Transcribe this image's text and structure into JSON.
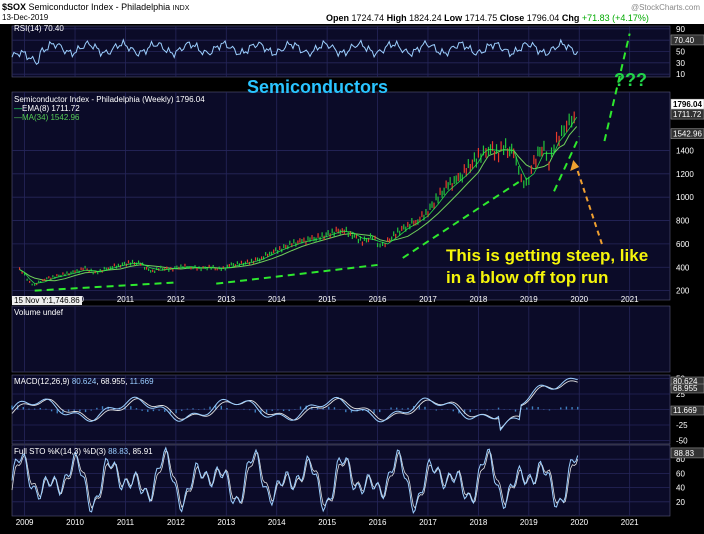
{
  "header": {
    "symbol": "$SOX",
    "name": "Semiconductor Index - Philadelphia",
    "exchange": "INDX",
    "date": "13-Dec-2019",
    "watermark": "@StockCharts.com",
    "ohlc": {
      "open_label": "Open",
      "open": "1724.74",
      "high_label": "High",
      "high": "1824.24",
      "low_label": "Low",
      "low": "1714.75",
      "close_label": "Close",
      "close": "1796.04",
      "chg_label": "Chg",
      "chg": "+71.83 (+4.17%)"
    }
  },
  "panels": {
    "rsi": {
      "label": "RSI(14)",
      "value": "70.40"
    },
    "price": {
      "series_label": "Semiconductor Index - Philadelphia (Weekly)",
      "series_value": "1796.04",
      "ema_label": "EMA(8)",
      "ema_value": "1711.72",
      "ma_label": "MA(34)",
      "ma_value": "1542.96"
    },
    "volume": {
      "label": "Volume undef"
    },
    "macd": {
      "label": "MACD(12,26,9)",
      "value1": "80.624",
      "value2": "68.955",
      "value3": "11.669"
    },
    "sto": {
      "label": "Full STO %K(14,3) %D(3)",
      "value1": "88.83",
      "value2": "85.91"
    }
  },
  "tooltip": "15 Nov Y:1,746.86",
  "annotations": {
    "sector": "Semiconductors",
    "question": "???",
    "steep_line1": "This is getting steep, like",
    "steep_line2": "in a blow off top run"
  },
  "colors": {
    "background": "#000000",
    "panel": "#0b0b28",
    "grid": "#26265a",
    "up_bar": "#22c33a",
    "down_bar": "#e8392a",
    "ema": "#2cf04a",
    "ma": "#6fcf5a",
    "indicator": "#9ccfff",
    "trendline": "#2ee82e",
    "arrow": "#f0a030",
    "label_sector": "#2ac4ff",
    "label_steep": "#f5f50a"
  },
  "chart_data": {
    "type": "line",
    "x_tick_labels": [
      "2009",
      "2010",
      "2011",
      "2012",
      "2013",
      "2014",
      "2015",
      "2016",
      "2017",
      "2018",
      "2019",
      "2020",
      "2021"
    ],
    "x_range": [
      2008.75,
      2021.8
    ],
    "price": {
      "ylim": [
        120,
        1900
      ],
      "y_ticks": [
        200,
        400,
        600,
        800,
        1000,
        1200,
        1400
      ],
      "right_labels": [
        "1796.04",
        "1711.72",
        "1542.96"
      ],
      "weekly_close": {
        "x": [
          2008.9,
          2009.0,
          2009.1,
          2009.2,
          2009.4,
          2009.6,
          2009.8,
          2010.0,
          2010.2,
          2010.4,
          2010.5,
          2010.7,
          2010.9,
          2011.1,
          2011.3,
          2011.5,
          2011.7,
          2011.9,
          2012.1,
          2012.3,
          2012.5,
          2012.7,
          2012.9,
          2013.1,
          2013.3,
          2013.5,
          2013.7,
          2013.9,
          2014.1,
          2014.3,
          2014.5,
          2014.7,
          2014.9,
          2015.1,
          2015.3,
          2015.5,
          2015.7,
          2015.9,
          2016.05,
          2016.2,
          2016.4,
          2016.6,
          2016.8,
          2017.0,
          2017.2,
          2017.4,
          2017.6,
          2017.8,
          2018.0,
          2018.1,
          2018.2,
          2018.4,
          2018.5,
          2018.7,
          2018.8,
          2018.95,
          2019.1,
          2019.3,
          2019.4,
          2019.5,
          2019.6,
          2019.7,
          2019.8,
          2019.95
        ],
        "y": [
          380,
          330,
          270,
          250,
          300,
          320,
          340,
          360,
          390,
          350,
          370,
          400,
          420,
          440,
          430,
          360,
          390,
          380,
          410,
          400,
          390,
          400,
          380,
          420,
          430,
          450,
          480,
          530,
          560,
          600,
          620,
          640,
          660,
          700,
          720,
          680,
          620,
          660,
          580,
          620,
          700,
          760,
          800,
          880,
          1000,
          1100,
          1150,
          1250,
          1350,
          1400,
          1420,
          1380,
          1430,
          1370,
          1200,
          1100,
          1300,
          1450,
          1300,
          1450,
          1500,
          1550,
          1620,
          1750
        ]
      },
      "ema8": {
        "value": 1711.72
      },
      "ma34": {
        "value": 1542.96
      }
    },
    "rsi": {
      "ylim": [
        5,
        95
      ],
      "y_ticks": [
        90,
        70,
        50,
        30,
        10
      ],
      "value": 70.4
    },
    "macd": {
      "y_ticks": [
        50,
        25,
        0,
        -25,
        -50
      ],
      "value": 80.624,
      "signal": 68.955,
      "histogram": 11.669
    },
    "sto": {
      "y_ticks": [
        80,
        60,
        40,
        20
      ],
      "k": 88.83,
      "d": 85.91
    }
  }
}
